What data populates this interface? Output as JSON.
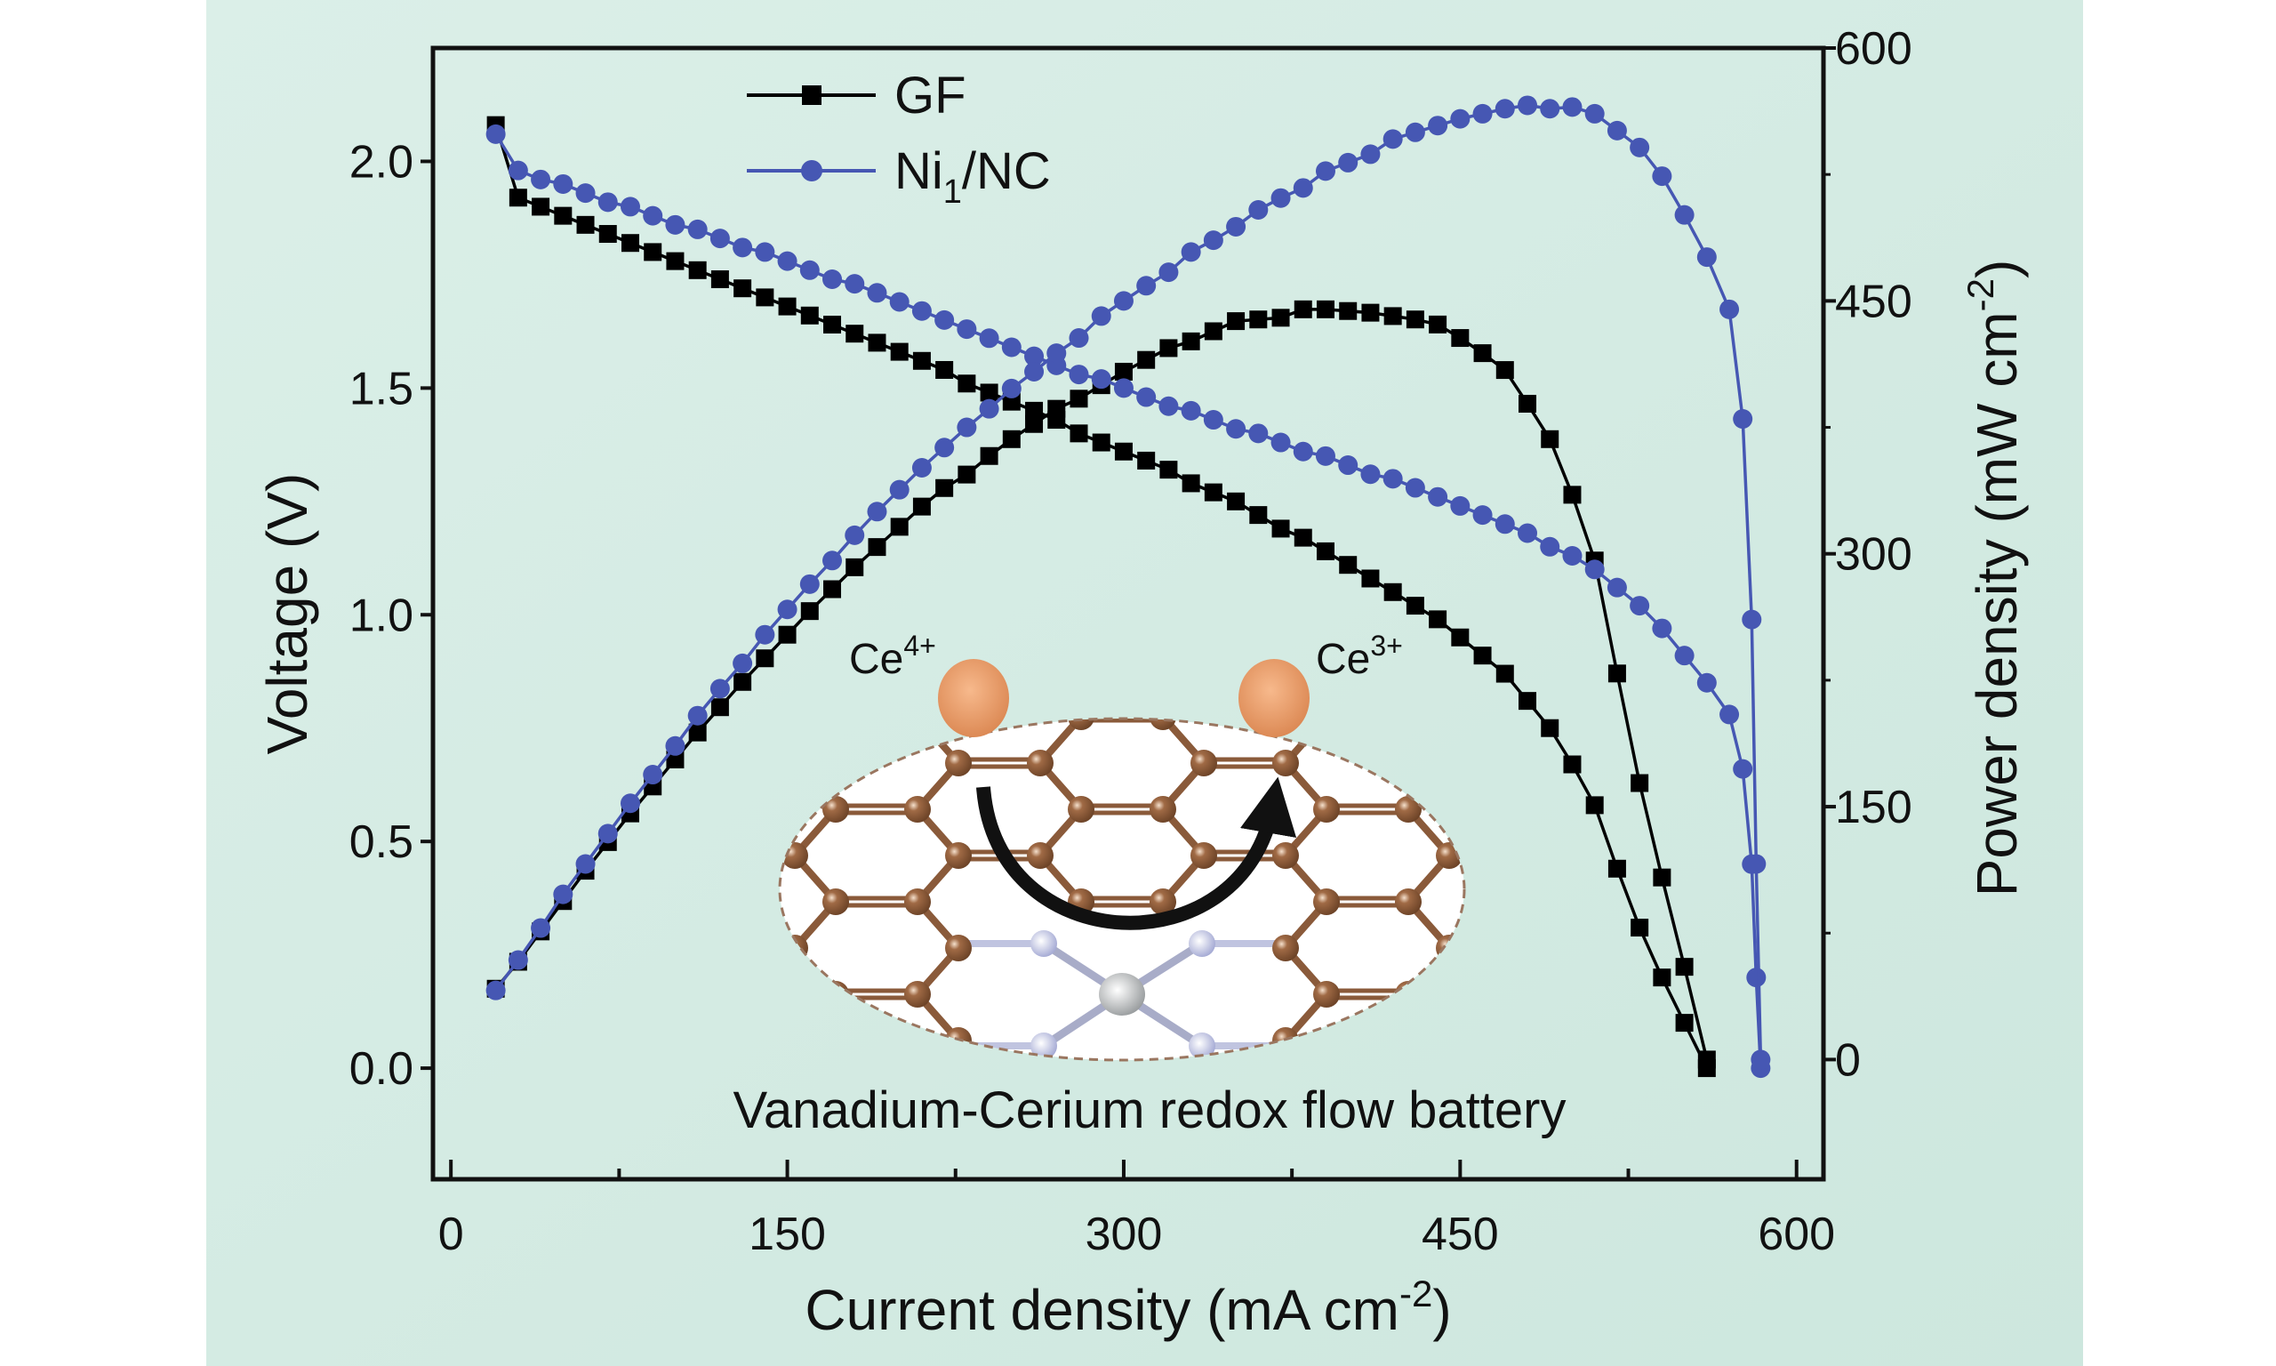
{
  "chart_data": {
    "type": "line",
    "xlabel": {
      "main": "Current density (mA cm",
      "sup": "-2",
      "end": ")"
    },
    "ylabel_left": "Voltage (V)",
    "ylabel_right": {
      "main": "Power density (mW cm",
      "sup": "-2",
      "end": ")"
    },
    "xlim": [
      -8,
      612
    ],
    "ylim_left": [
      -0.245,
      2.25
    ],
    "ylim_right": [
      -71,
      600
    ],
    "xticks": [
      "0",
      "150",
      "300",
      "450",
      "600"
    ],
    "yticks_left": [
      "0.0",
      "0.5",
      "1.0",
      "1.5",
      "2.0"
    ],
    "yticks_right": [
      "0",
      "150",
      "300",
      "450",
      "600"
    ],
    "grid": false,
    "legend_position": "top-left",
    "colors": {
      "GF": "#000000",
      "Ni1/NC": "#4657b3"
    },
    "series": [
      {
        "name": "GF",
        "legend": {
          "main": "GF"
        },
        "marker": "square",
        "x": [
          20,
          30,
          40,
          50,
          60,
          70,
          80,
          90,
          100,
          110,
          120,
          130,
          140,
          150,
          160,
          170,
          180,
          190,
          200,
          210,
          220,
          230,
          240,
          250,
          260,
          270,
          280,
          290,
          300,
          310,
          320,
          330,
          340,
          350,
          360,
          370,
          380,
          390,
          400,
          410,
          420,
          430,
          440,
          450,
          460,
          470,
          480,
          490,
          500,
          510,
          520,
          530,
          540,
          550,
          560
        ],
        "voltage": [
          2.08,
          1.92,
          1.9,
          1.88,
          1.86,
          1.84,
          1.82,
          1.8,
          1.78,
          1.76,
          1.74,
          1.72,
          1.7,
          1.68,
          1.66,
          1.64,
          1.62,
          1.6,
          1.58,
          1.56,
          1.54,
          1.51,
          1.49,
          1.47,
          1.45,
          1.43,
          1.4,
          1.38,
          1.36,
          1.34,
          1.32,
          1.29,
          1.27,
          1.25,
          1.22,
          1.19,
          1.17,
          1.14,
          1.11,
          1.08,
          1.05,
          1.02,
          0.99,
          0.95,
          0.91,
          0.87,
          0.81,
          0.75,
          0.67,
          0.58,
          0.44,
          0.31,
          0.2,
          0.1,
          0.0
        ],
        "power": [
          42,
          58,
          76,
          94,
          112,
          129,
          146,
          162,
          178,
          194,
          209,
          224,
          238,
          252,
          266,
          279,
          292,
          304,
          316,
          328,
          339,
          347,
          358,
          368,
          377,
          386,
          392,
          400,
          408,
          415,
          422,
          426,
          432,
          438,
          439,
          440,
          445,
          445,
          444,
          443,
          441,
          439,
          436,
          428,
          419,
          409,
          389,
          368,
          335,
          296,
          229,
          164,
          108,
          55,
          0
        ]
      },
      {
        "name": "Ni1/NC",
        "legend": {
          "main": "Ni",
          "sub": "1",
          "end": "/NC"
        },
        "marker": "circle",
        "x": [
          20,
          30,
          40,
          50,
          60,
          70,
          80,
          90,
          100,
          110,
          120,
          130,
          140,
          150,
          160,
          170,
          180,
          190,
          200,
          210,
          220,
          230,
          240,
          250,
          260,
          270,
          280,
          290,
          300,
          310,
          320,
          330,
          340,
          350,
          360,
          370,
          380,
          390,
          400,
          410,
          420,
          430,
          440,
          450,
          460,
          470,
          480,
          490,
          500,
          510,
          520,
          530,
          540,
          550,
          560,
          570,
          576,
          580,
          582,
          584
        ],
        "voltage": [
          2.06,
          1.98,
          1.96,
          1.95,
          1.93,
          1.91,
          1.9,
          1.88,
          1.86,
          1.85,
          1.83,
          1.81,
          1.8,
          1.78,
          1.76,
          1.74,
          1.73,
          1.71,
          1.69,
          1.67,
          1.65,
          1.63,
          1.61,
          1.59,
          1.57,
          1.55,
          1.53,
          1.52,
          1.5,
          1.48,
          1.46,
          1.45,
          1.43,
          1.41,
          1.4,
          1.38,
          1.36,
          1.35,
          1.33,
          1.31,
          1.3,
          1.28,
          1.26,
          1.24,
          1.22,
          1.2,
          1.18,
          1.15,
          1.13,
          1.1,
          1.06,
          1.02,
          0.97,
          0.91,
          0.85,
          0.78,
          0.66,
          0.45,
          0.2,
          0.0
        ],
        "power": [
          41,
          59,
          78,
          98,
          116,
          134,
          152,
          169,
          186,
          204,
          220,
          235,
          252,
          267,
          282,
          296,
          311,
          325,
          338,
          351,
          363,
          375,
          386,
          398,
          408,
          419,
          428,
          441,
          450,
          459,
          467,
          479,
          486,
          494,
          504,
          511,
          517,
          527,
          532,
          537,
          546,
          550,
          554,
          558,
          561,
          564,
          566,
          564,
          565,
          561,
          551,
          541,
          524,
          501,
          476,
          445,
          380,
          261,
          116,
          0
        ]
      }
    ],
    "annotations": {
      "ce_left": {
        "main": "Ce",
        "sup": "4+"
      },
      "ce_right": {
        "main": "Ce",
        "sup": "3+"
      },
      "caption": "Vanadium-Cerium  redox flow battery"
    }
  }
}
